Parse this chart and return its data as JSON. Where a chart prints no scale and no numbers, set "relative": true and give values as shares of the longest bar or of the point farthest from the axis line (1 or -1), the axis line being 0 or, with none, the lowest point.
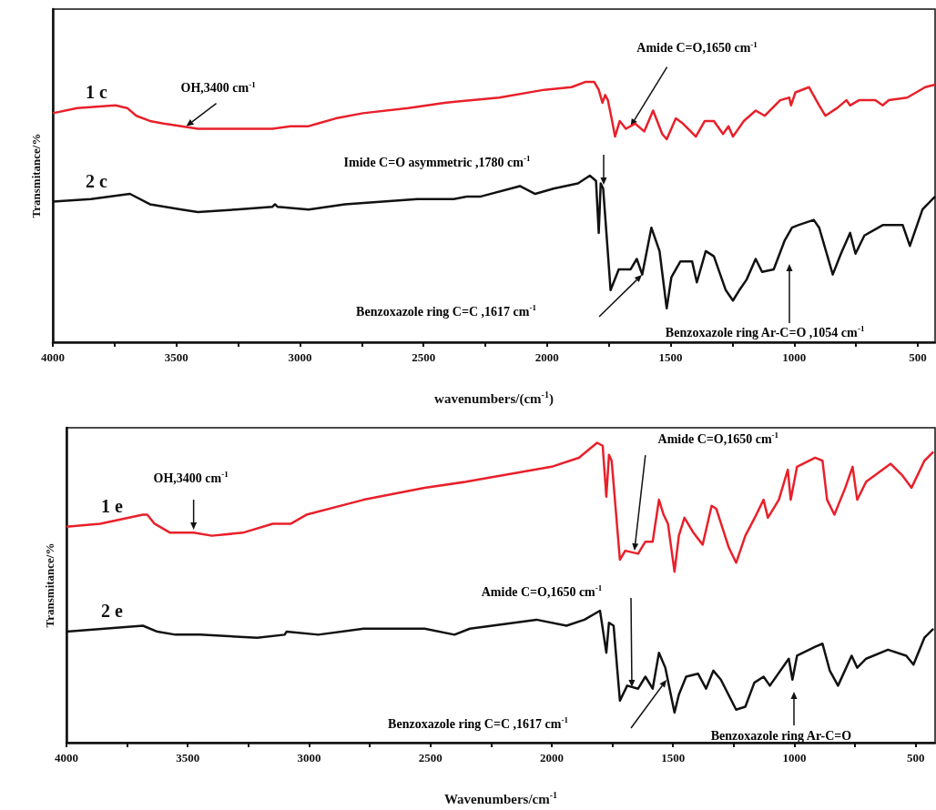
{
  "chart_data": [
    {
      "type": "line",
      "relative": true,
      "xlabel": "wavenumbers/(cm$^{-1}$)",
      "ylabel": "Transmitance/%",
      "xlim": [
        4000,
        430
      ],
      "xticks": [
        4000,
        {
          "value": 3750,
          "label": null
        },
        3500,
        {
          "value": 3250,
          "label": null
        },
        3000,
        {
          "value": 2750,
          "label": null
        },
        2500,
        {
          "value": 2250,
          "label": null
        },
        2000,
        {
          "value": 1750,
          "label": null
        },
        1500,
        {
          "value": 1250,
          "label": null
        },
        1000,
        {
          "value": 750,
          "label": null
        },
        500
      ],
      "series": [
        {
          "name": "1 c",
          "color": "#e8202a",
          "x": [
            4000,
            3901,
            3747,
            3699,
            3662,
            3607,
            3552,
            3479,
            3413,
            3295,
            3112,
            3038,
            2965,
            2928,
            2855,
            2745,
            2561,
            2415,
            2194,
            2011,
            1901,
            1846,
            1809,
            1791,
            1776,
            1765,
            1754,
            1739,
            1725,
            1706,
            1681,
            1644,
            1607,
            1571,
            1534,
            1516,
            1479,
            1450,
            1398,
            1362,
            1325,
            1288,
            1266,
            1248,
            1204,
            1156,
            1119,
            1057,
            1020,
            1013,
            995,
            940,
            899,
            874,
            826,
            789,
            774,
            738,
            672,
            642,
            617,
            543,
            506,
            470,
            430
          ],
          "values": [
            0.88,
            0.9,
            0.91,
            0.9,
            0.87,
            0.85,
            0.84,
            0.83,
            0.82,
            0.82,
            0.82,
            0.83,
            0.83,
            0.84,
            0.86,
            0.88,
            0.9,
            0.92,
            0.94,
            0.97,
            0.98,
            1.0,
            1.0,
            0.97,
            0.92,
            0.95,
            0.93,
            0.86,
            0.79,
            0.85,
            0.82,
            0.84,
            0.81,
            0.89,
            0.8,
            0.78,
            0.86,
            0.84,
            0.79,
            0.85,
            0.85,
            0.8,
            0.83,
            0.79,
            0.85,
            0.89,
            0.87,
            0.93,
            0.94,
            0.91,
            0.96,
            0.98,
            0.91,
            0.87,
            0.9,
            0.93,
            0.91,
            0.93,
            0.93,
            0.91,
            0.93,
            0.94,
            0.96,
            0.98,
            0.99
          ]
        },
        {
          "name": "2 c",
          "color": "#111111",
          "x": [
            4000,
            3846,
            3688,
            3607,
            3479,
            3413,
            3259,
            3112,
            3101,
            3090,
            2965,
            2818,
            2525,
            2378,
            2323,
            2268,
            2110,
            2048,
            1974,
            1875,
            1827,
            1802,
            1791,
            1783,
            1773,
            1743,
            1710,
            1662,
            1637,
            1615,
            1578,
            1545,
            1516,
            1497,
            1461,
            1413,
            1394,
            1358,
            1325,
            1277,
            1248,
            1222,
            1193,
            1156,
            1130,
            1083,
            1039,
            1009,
            984,
            921,
            899,
            844,
            811,
            774,
            752,
            716,
            642,
            561,
            532,
            481,
            430
          ],
          "values": [
            0.54,
            0.55,
            0.57,
            0.53,
            0.51,
            0.5,
            0.51,
            0.52,
            0.53,
            0.52,
            0.51,
            0.53,
            0.55,
            0.55,
            0.56,
            0.56,
            0.6,
            0.57,
            0.59,
            0.61,
            0.64,
            0.62,
            0.42,
            0.61,
            0.59,
            0.2,
            0.28,
            0.28,
            0.32,
            0.26,
            0.44,
            0.35,
            0.13,
            0.25,
            0.31,
            0.31,
            0.23,
            0.35,
            0.33,
            0.2,
            0.16,
            0.2,
            0.24,
            0.32,
            0.27,
            0.28,
            0.39,
            0.44,
            0.45,
            0.47,
            0.44,
            0.26,
            0.34,
            0.42,
            0.34,
            0.41,
            0.45,
            0.45,
            0.37,
            0.51,
            0.56
          ]
        }
      ],
      "annotations": [
        {
          "text": "OH,3400 cm$^{-1}$",
          "x": 3460,
          "y": 0.83
        },
        {
          "text": "Amide C=O,1650 cm$^{-1}$",
          "x": 1662,
          "y": 0.83
        },
        "Imide C=O asymmetric ,1780 cm$^{-1}$",
        "Benzoxazole ring C=C ,1617 cm$^{-1}$",
        "Benzoxazole ring Ar-C=O ,1054 cm$^{-1}$"
      ]
    },
    {
      "type": "line",
      "relative": true,
      "xlabel": "Wavenumbers/cm$^{-1}$",
      "ylabel": "Transmitance/%",
      "xlim": [
        4000,
        420
      ],
      "xticks": [
        4000,
        {
          "value": 3750,
          "label": null
        },
        3500,
        {
          "value": 3250,
          "label": null
        },
        3000,
        {
          "value": 2750,
          "label": null
        },
        2500,
        {
          "value": 2250,
          "label": null
        },
        2000,
        {
          "value": 1750,
          "label": null
        },
        1500,
        {
          "value": 1250,
          "label": null
        },
        1000,
        {
          "value": 750,
          "label": null
        },
        500
      ],
      "series": [
        {
          "name": "1 e",
          "color": "#e8202a",
          "x": [
            4000,
            3861,
            3685,
            3667,
            3637,
            3573,
            3476,
            3401,
            3273,
            3150,
            3075,
            3011,
            2775,
            2524,
            2352,
            2000,
            1888,
            1813,
            1790,
            1775,
            1764,
            1753,
            1719,
            1697,
            1644,
            1614,
            1584,
            1558,
            1539,
            1521,
            1494,
            1476,
            1453,
            1416,
            1378,
            1341,
            1322,
            1270,
            1240,
            1202,
            1157,
            1127,
            1109,
            1064,
            1027,
            1015,
            989,
            914,
            884,
            865,
            835,
            790,
            760,
            741,
            704,
            603,
            554,
            517,
            464,
            427
          ],
          "values": [
            0.72,
            0.73,
            0.76,
            0.76,
            0.73,
            0.7,
            0.7,
            0.69,
            0.7,
            0.73,
            0.73,
            0.76,
            0.81,
            0.85,
            0.87,
            0.92,
            0.95,
            1.0,
            0.99,
            0.82,
            0.96,
            0.94,
            0.61,
            0.64,
            0.63,
            0.67,
            0.67,
            0.81,
            0.76,
            0.73,
            0.57,
            0.69,
            0.75,
            0.7,
            0.66,
            0.79,
            0.78,
            0.65,
            0.6,
            0.69,
            0.76,
            0.81,
            0.75,
            0.81,
            0.91,
            0.81,
            0.92,
            0.95,
            0.94,
            0.81,
            0.76,
            0.85,
            0.92,
            0.81,
            0.87,
            0.93,
            0.89,
            0.85,
            0.94,
            0.97
          ]
        },
        {
          "name": "2 e",
          "color": "#111111",
          "x": [
            4000,
            3685,
            3625,
            3551,
            3450,
            3214,
            3101,
            3093,
            2962,
            2775,
            2524,
            2401,
            2337,
            2063,
            1939,
            1865,
            1801,
            1775,
            1764,
            1745,
            1719,
            1689,
            1644,
            1614,
            1584,
            1558,
            1532,
            1494,
            1476,
            1446,
            1397,
            1364,
            1334,
            1303,
            1240,
            1202,
            1165,
            1127,
            1101,
            1023,
            1008,
            989,
            914,
            884,
            854,
            820,
            764,
            741,
            704,
            614,
            539,
            509,
            464,
            427
          ],
          "values": [
            0.37,
            0.39,
            0.37,
            0.36,
            0.36,
            0.35,
            0.36,
            0.37,
            0.36,
            0.38,
            0.38,
            0.36,
            0.38,
            0.41,
            0.39,
            0.41,
            0.44,
            0.3,
            0.4,
            0.39,
            0.14,
            0.19,
            0.18,
            0.22,
            0.18,
            0.3,
            0.25,
            0.1,
            0.16,
            0.22,
            0.23,
            0.18,
            0.24,
            0.21,
            0.11,
            0.12,
            0.2,
            0.22,
            0.19,
            0.28,
            0.21,
            0.29,
            0.32,
            0.33,
            0.24,
            0.19,
            0.29,
            0.25,
            0.28,
            0.31,
            0.29,
            0.26,
            0.35,
            0.38
          ]
        }
      ],
      "annotations": [
        {
          "text": "OH,3400 cm$^{-1}$",
          "x": 3476,
          "y": 0.71
        },
        {
          "text": "Amide C=O,1650 cm$^{-1}$",
          "x": 1659,
          "y": 0.64
        },
        "Amide C=O,1650 cm$^{-1}$",
        "Benzoxazole ring C=C ,1617 cm$^{-1}$",
        "Benzoxazole ring Ar-C=O"
      ]
    }
  ]
}
